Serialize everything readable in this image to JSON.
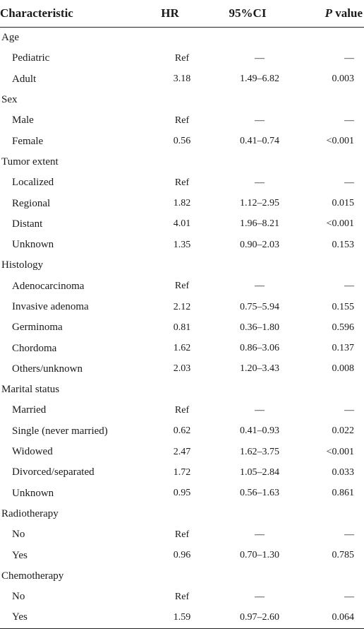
{
  "header": {
    "characteristic": "Characteristic",
    "hr": "HR",
    "ci": "95%CI",
    "p_italic": "P",
    "p_rest": " value"
  },
  "rows": [
    {
      "type": "group",
      "label": "Age",
      "hr": "",
      "ci": "",
      "p": ""
    },
    {
      "type": "item",
      "label": "Pediatric",
      "hr": "Ref",
      "ci": "—",
      "p": "—"
    },
    {
      "type": "item",
      "label": "Adult",
      "hr": "3.18",
      "ci": "1.49–6.82",
      "p": "0.003"
    },
    {
      "type": "group",
      "label": "Sex",
      "hr": "",
      "ci": "",
      "p": ""
    },
    {
      "type": "item",
      "label": "Male",
      "hr": "Ref",
      "ci": "—",
      "p": "—"
    },
    {
      "type": "item",
      "label": "Female",
      "hr": "0.56",
      "ci": "0.41–0.74",
      "p": "<0.001"
    },
    {
      "type": "group",
      "label": "Tumor extent",
      "hr": "",
      "ci": "",
      "p": ""
    },
    {
      "type": "item",
      "label": "Localized",
      "hr": "Ref",
      "ci": "—",
      "p": "—"
    },
    {
      "type": "item",
      "label": "Regional",
      "hr": "1.82",
      "ci": "1.12–2.95",
      "p": "0.015"
    },
    {
      "type": "item",
      "label": "Distant",
      "hr": "4.01",
      "ci": "1.96–8.21",
      "p": "<0.001"
    },
    {
      "type": "item",
      "label": "Unknown",
      "hr": "1.35",
      "ci": "0.90–2.03",
      "p": "0.153"
    },
    {
      "type": "group",
      "label": "Histology",
      "hr": "",
      "ci": "",
      "p": ""
    },
    {
      "type": "item",
      "label": "Adenocarcinoma",
      "hr": "Ref",
      "ci": "—",
      "p": "—"
    },
    {
      "type": "item",
      "label": "Invasive adenoma",
      "hr": "2.12",
      "ci": "0.75–5.94",
      "p": "0.155"
    },
    {
      "type": "item",
      "label": "Germinoma",
      "hr": "0.81",
      "ci": "0.36–1.80",
      "p": "0.596"
    },
    {
      "type": "item",
      "label": "Chordoma",
      "hr": "1.62",
      "ci": "0.86–3.06",
      "p": "0.137"
    },
    {
      "type": "item",
      "label": "Others/unknown",
      "hr": "2.03",
      "ci": "1.20–3.43",
      "p": "0.008"
    },
    {
      "type": "group",
      "label": "Marital status",
      "hr": "",
      "ci": "",
      "p": ""
    },
    {
      "type": "item",
      "label": "Married",
      "hr": "Ref",
      "ci": "—",
      "p": "—"
    },
    {
      "type": "item",
      "label": "Single (never married)",
      "hr": "0.62",
      "ci": "0.41–0.93",
      "p": "0.022"
    },
    {
      "type": "item",
      "label": "Widowed",
      "hr": "2.47",
      "ci": "1.62–3.75",
      "p": "<0.001"
    },
    {
      "type": "item",
      "label": "Divorced/separated",
      "hr": "1.72",
      "ci": "1.05–2.84",
      "p": "0.033"
    },
    {
      "type": "item",
      "label": "Unknown",
      "hr": "0.95",
      "ci": "0.56–1.63",
      "p": "0.861"
    },
    {
      "type": "group",
      "label": "Radiotherapy",
      "hr": "",
      "ci": "",
      "p": ""
    },
    {
      "type": "item",
      "label": "No",
      "hr": "Ref",
      "ci": "—",
      "p": "—"
    },
    {
      "type": "item",
      "label": "Yes",
      "hr": "0.96",
      "ci": "0.70–1.30",
      "p": "0.785"
    },
    {
      "type": "group",
      "label": "Chemotherapy",
      "hr": "",
      "ci": "",
      "p": ""
    },
    {
      "type": "item",
      "label": "No",
      "hr": "Ref",
      "ci": "—",
      "p": "—"
    },
    {
      "type": "item",
      "label": "Yes",
      "hr": "1.59",
      "ci": "0.97–2.60",
      "p": "0.064"
    }
  ]
}
